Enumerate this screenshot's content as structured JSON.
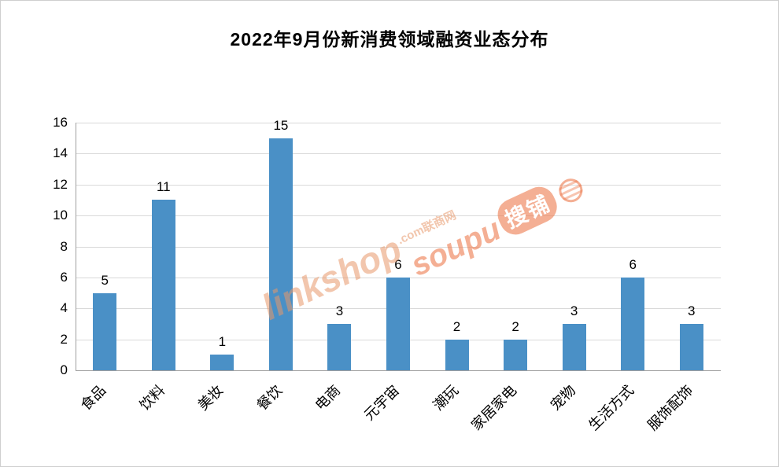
{
  "chart_data": {
    "type": "bar",
    "title": "2022年9月份新消费领域融资业态分布",
    "categories": [
      "食品",
      "饮料",
      "美妆",
      "餐饮",
      "电商",
      "元宇宙",
      "潮玩",
      "家居家电",
      "宠物",
      "生活方式",
      "服饰配饰"
    ],
    "values": [
      5,
      11,
      1,
      15,
      3,
      6,
      2,
      2,
      3,
      6,
      3
    ],
    "xlabel": "",
    "ylabel": "",
    "ylim": [
      0,
      16
    ],
    "ytick_step": 2,
    "grid": true,
    "legend": "none",
    "bar_color": "#4a90c6"
  },
  "watermarks": [
    {
      "text": "linkshop",
      "suffix": ".com联商网"
    },
    {
      "text": "soupu",
      "suffix": "搜铺"
    }
  ]
}
